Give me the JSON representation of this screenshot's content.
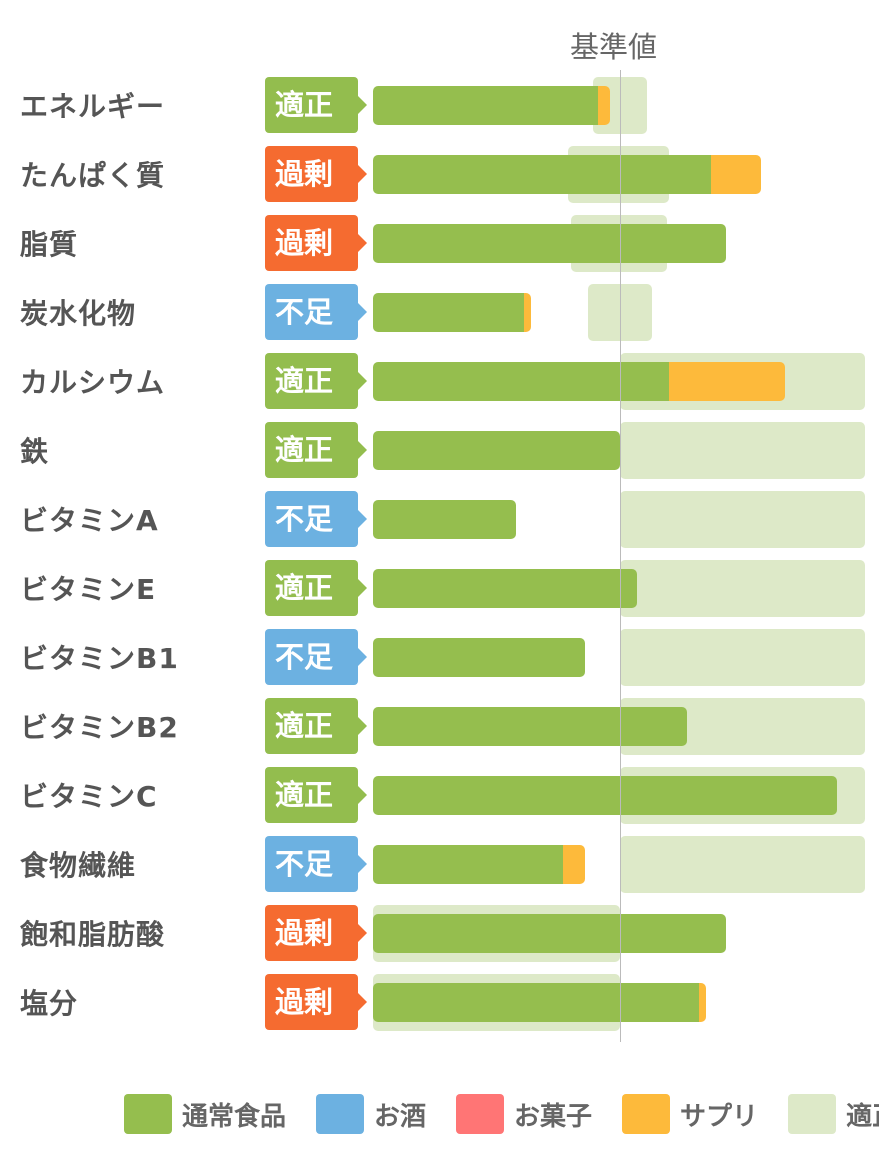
{
  "chart_data": {
    "type": "bar",
    "orientation": "horizontal",
    "stacked": true,
    "reference_label": "基準値",
    "reference_value": 100,
    "xlim": [
      0,
      205
    ],
    "categories": [
      "エネルギー",
      "たんぱく質",
      "脂質",
      "炭水化物",
      "カルシウム",
      "鉄",
      "ビタミンA",
      "ビタミンE",
      "ビタミンB1",
      "ビタミンB2",
      "ビタミンC",
      "食物繊維",
      "飽和脂肪酸",
      "塩分"
    ],
    "status": [
      "適正",
      "過剰",
      "過剰",
      "不足",
      "適正",
      "適正",
      "不足",
      "適正",
      "不足",
      "適正",
      "適正",
      "不足",
      "過剰",
      "過剰"
    ],
    "status_colors": {
      "適正": "#93bd4e",
      "過剰": "#f56b30",
      "不足": "#6cb1e1"
    },
    "series": [
      {
        "name": "通常食品",
        "color": "#95be4e",
        "values": [
          91,
          137,
          143,
          61,
          120,
          100,
          58,
          107,
          86,
          127,
          188,
          77,
          143,
          132
        ]
      },
      {
        "name": "お酒",
        "color": "#6cb1e1",
        "values": [
          0,
          0,
          0,
          0,
          0,
          0,
          0,
          0,
          0,
          0,
          0,
          0,
          0,
          0
        ]
      },
      {
        "name": "お菓子",
        "color": "#ff7575",
        "values": [
          0,
          0,
          0,
          0,
          0,
          0,
          0,
          0,
          0,
          0,
          0,
          0,
          0,
          0
        ]
      },
      {
        "name": "サプリ",
        "color": "#fdba3b",
        "values": [
          5,
          20,
          0,
          3,
          47,
          0,
          0,
          0,
          0,
          0,
          0,
          9,
          0,
          3
        ]
      }
    ],
    "appropriate_range": {
      "name": "適正",
      "color": "#dde9c8",
      "ranges": [
        [
          89,
          111
        ],
        [
          79,
          120
        ],
        [
          80,
          119
        ],
        [
          87,
          113
        ],
        [
          100,
          199
        ],
        [
          100,
          199
        ],
        [
          100,
          199
        ],
        [
          100,
          199
        ],
        [
          100,
          199
        ],
        [
          100,
          199
        ],
        [
          100,
          199
        ],
        [
          100,
          199
        ],
        [
          0,
          100
        ],
        [
          0,
          100
        ]
      ]
    },
    "legend_position": "bottom",
    "grid": false
  }
}
